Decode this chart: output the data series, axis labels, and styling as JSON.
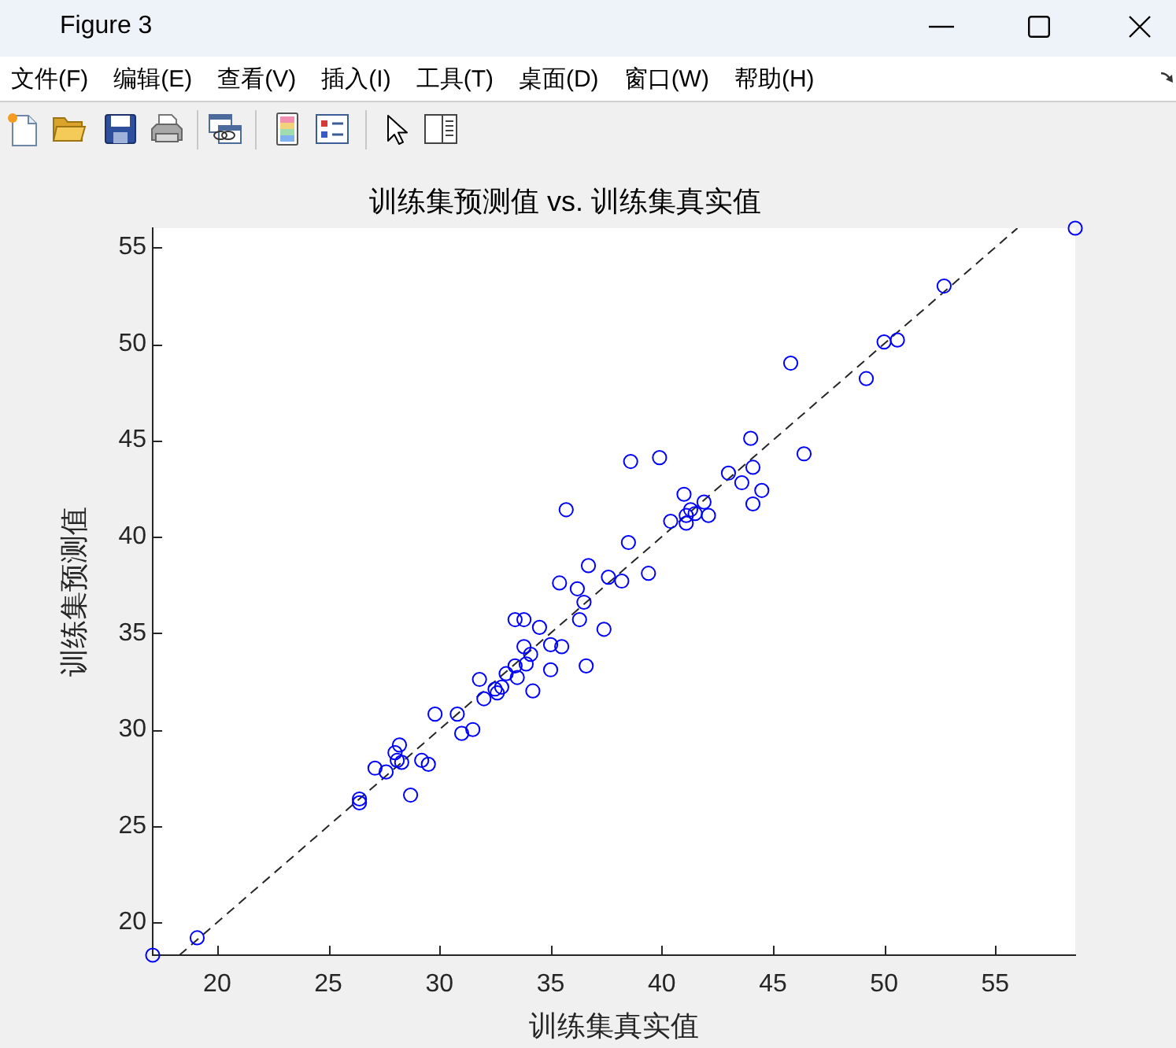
{
  "chart_data": {
    "type": "scatter",
    "title": "训练集预测值 vs. 训练集真实值",
    "xlabel": "训练集真实值",
    "ylabel": "训练集预测值",
    "annotations": [
      "Figure 3",
      "文件(F)",
      "编辑(E)",
      "查看(V)",
      "插入(I)",
      "工具(T)",
      "桌面(D)",
      "窗口(W)",
      "帮助(H)"
    ],
    "xlim": [
      17.1,
      58.6
    ],
    "ylim": [
      18.3,
      56.0
    ],
    "xticks": [
      20,
      25,
      30,
      35,
      40,
      45,
      50,
      55
    ],
    "yticks": [
      20,
      25,
      30,
      35,
      40,
      45,
      50,
      55
    ],
    "marker": "circle",
    "series": [
      {
        "type": "scatter",
        "color": "#0000ff",
        "x": [
          17.1,
          19.1,
          26.4,
          26.4,
          27.1,
          27.6,
          28.0,
          28.2,
          28.1,
          28.3,
          28.7,
          29.2,
          29.5,
          29.8,
          30.8,
          31.0,
          31.5,
          31.8,
          32.0,
          32.5,
          32.6,
          32.8,
          33.0,
          33.5,
          33.4,
          33.8,
          33.9,
          34.1,
          34.2,
          33.4,
          33.8,
          34.5,
          35.0,
          35.5,
          35.0,
          36.6,
          35.4,
          36.2,
          36.5,
          36.3,
          37.4,
          36.7,
          37.6,
          38.2,
          38.5,
          39.4,
          35.7,
          38.6,
          39.9,
          45.8,
          44.0,
          46.4,
          43.0,
          43.6,
          44.1,
          44.5,
          44.1,
          41.0,
          40.4,
          41.9,
          41.1,
          41.3,
          41.5,
          42.1,
          41.1,
          52.7,
          50.0,
          50.6,
          49.2,
          58.6
        ],
        "values": [
          18.3,
          19.2,
          26.4,
          26.2,
          28.0,
          27.8,
          28.8,
          29.2,
          28.4,
          28.3,
          26.6,
          28.4,
          28.2,
          30.8,
          30.8,
          29.8,
          30.0,
          32.6,
          31.6,
          32.1,
          31.9,
          32.2,
          32.9,
          32.7,
          33.3,
          34.3,
          33.4,
          33.9,
          32.0,
          35.7,
          35.7,
          35.3,
          34.4,
          34.3,
          33.1,
          33.3,
          37.6,
          37.3,
          36.6,
          35.7,
          35.2,
          38.5,
          37.9,
          37.7,
          39.7,
          38.1,
          41.4,
          43.9,
          44.1,
          49.0,
          45.1,
          44.3,
          43.3,
          42.8,
          43.6,
          42.4,
          41.7,
          42.2,
          40.8,
          41.8,
          41.1,
          41.4,
          41.2,
          41.1,
          40.7,
          53.0,
          50.1,
          50.2,
          48.2,
          56.0
        ]
      },
      {
        "type": "line",
        "color": "#262626",
        "x": [
          18.3,
          56.0
        ],
        "values": [
          18.3,
          56.0
        ],
        "marker": "none",
        "line_style": "dashed"
      }
    ]
  }
}
